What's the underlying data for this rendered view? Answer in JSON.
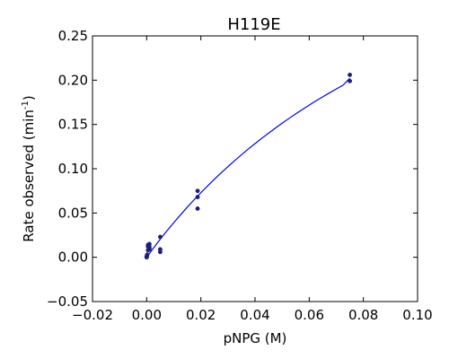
{
  "chart_data": {
    "type": "scatter",
    "title": "H119E",
    "xlabel": "pNPG (M)",
    "ylabel": {
      "base": "Rate observed (min",
      "sup": "-1",
      "tail": ")"
    },
    "xlim": [
      -0.02,
      0.1
    ],
    "ylim": [
      -0.05,
      0.25
    ],
    "xticks": [
      "−0.02",
      "0.00",
      "0.02",
      "0.04",
      "0.06",
      "0.08",
      "0.10"
    ],
    "yticks": [
      "−0.05",
      "0.00",
      "0.05",
      "0.10",
      "0.15",
      "0.20",
      "0.25"
    ],
    "grid": false,
    "legend": "none",
    "colors": {
      "points": "#1f1f7a",
      "fit_line": "#0000ff",
      "axes": "#000000"
    },
    "series": [
      {
        "kind": "points",
        "x": [
          0.0,
          0.0,
          0.0,
          0.0,
          0.0002,
          0.0005,
          0.0005,
          0.0005,
          0.001,
          0.001,
          0.001,
          0.001,
          0.005,
          0.005,
          0.005,
          0.0188,
          0.0188,
          0.0188,
          0.075,
          0.075
        ],
        "y": [
          0.0,
          0.0005,
          0.001,
          0.0002,
          0.003,
          0.008,
          0.012,
          0.014,
          0.009,
          0.012,
          0.015,
          0.01,
          0.006,
          0.009,
          0.023,
          0.055,
          0.068,
          0.075,
          0.199,
          0.206
        ]
      },
      {
        "kind": "fit",
        "x": [
          0.0,
          0.0025,
          0.005,
          0.0075,
          0.01,
          0.0125,
          0.015,
          0.0175,
          0.02,
          0.0225,
          0.025,
          0.0275,
          0.03,
          0.0325,
          0.035,
          0.0375,
          0.04,
          0.0425,
          0.045,
          0.0475,
          0.05,
          0.0525,
          0.055,
          0.0575,
          0.06,
          0.0625,
          0.065,
          0.0675,
          0.07,
          0.0725,
          0.075
        ],
        "y": [
          0.0,
          0.0104,
          0.0204,
          0.0299,
          0.0391,
          0.048,
          0.0566,
          0.0649,
          0.0729,
          0.0806,
          0.0881,
          0.0954,
          0.1024,
          0.1092,
          0.1158,
          0.1222,
          0.1284,
          0.1344,
          0.1402,
          0.1459,
          0.1514,
          0.1567,
          0.1619,
          0.1669,
          0.1718,
          0.1766,
          0.1812,
          0.1857,
          0.1901,
          0.1944,
          0.2022
        ]
      }
    ]
  }
}
